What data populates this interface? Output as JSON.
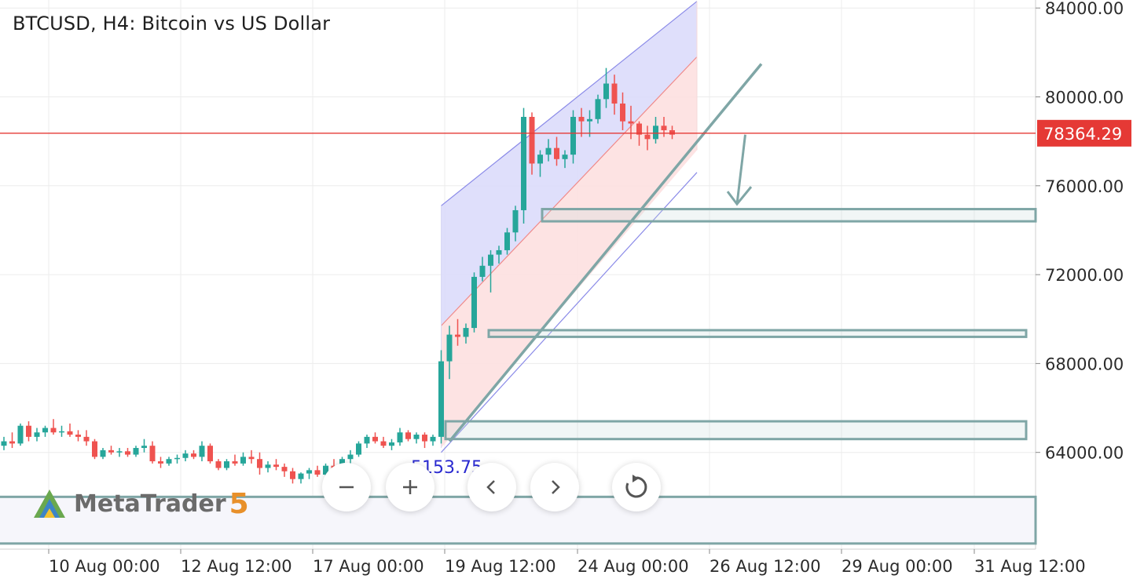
{
  "header": {
    "title": "BTCUSD, H4: Bitcoin vs US Dollar"
  },
  "logo": {
    "name": "MetaTrader",
    "version": "5"
  },
  "cursor_readout": "5153.75",
  "controls": [
    {
      "name": "zoom-out-button",
      "icon": "minus-icon"
    },
    {
      "name": "zoom-in-button",
      "icon": "plus-icon"
    },
    {
      "name": "scroll-left-button",
      "icon": "chevron-left-icon"
    },
    {
      "name": "scroll-right-button",
      "icon": "chevron-right-icon"
    },
    {
      "name": "reset-button",
      "icon": "refresh-icon"
    }
  ],
  "colors": {
    "up": "#26a69a",
    "down": "#ef5350",
    "price_line": "#e53935",
    "zone": "#7fa6a6",
    "channel_upper_fill": "#dcdcfb",
    "channel_lower_fill": "#fde0e0"
  },
  "chart_data": {
    "type": "candlestick",
    "symbol": "BTCUSD",
    "timeframe": "H4",
    "y_ticks": [
      "84000.00",
      "80000.00",
      "76000.00",
      "72000.00",
      "68000.00",
      "64000.00"
    ],
    "x_ticks": [
      "10 Aug 00:00",
      "12 Aug 12:00",
      "17 Aug 00:00",
      "19 Aug 12:00",
      "24 Aug 00:00",
      "26 Aug 12:00",
      "29 Aug 00:00",
      "31 Aug 12:00"
    ],
    "ylim": [
      59600,
      84200
    ],
    "current_price": 78364.29,
    "current_price_label": "78364.29",
    "support_zones": [
      {
        "low": 74400,
        "high": 74950
      },
      {
        "low": 69200,
        "high": 69500
      },
      {
        "low": 64600,
        "high": 65400
      },
      {
        "low": 59900,
        "high": 62000
      }
    ],
    "candles": [
      [
        64300,
        64700,
        64100,
        64500
      ],
      [
        64500,
        64900,
        64200,
        64400
      ],
      [
        64400,
        65300,
        64300,
        65200
      ],
      [
        65200,
        65400,
        64500,
        64700
      ],
      [
        64700,
        65100,
        64500,
        64900
      ],
      [
        64900,
        65200,
        64700,
        65100
      ],
      [
        65100,
        65500,
        64800,
        64900
      ],
      [
        64900,
        65200,
        64700,
        64950
      ],
      [
        64950,
        65300,
        64700,
        64800
      ],
      [
        64800,
        65000,
        64500,
        64700
      ],
      [
        64700,
        65000,
        64300,
        64500
      ],
      [
        64500,
        64600,
        63700,
        63800
      ],
      [
        63800,
        64200,
        63700,
        64100
      ],
      [
        64100,
        64300,
        63900,
        64000
      ],
      [
        64000,
        64200,
        63800,
        64050
      ],
      [
        64050,
        64200,
        63800,
        63900
      ],
      [
        63900,
        64300,
        63800,
        64200
      ],
      [
        64200,
        64600,
        64000,
        64300
      ],
      [
        64300,
        64500,
        63500,
        63600
      ],
      [
        63600,
        63800,
        63300,
        63500
      ],
      [
        63500,
        63800,
        63400,
        63700
      ],
      [
        63700,
        63900,
        63500,
        63750
      ],
      [
        63750,
        64100,
        63600,
        63950
      ],
      [
        63950,
        64100,
        63700,
        63800
      ],
      [
        63800,
        64500,
        63600,
        64300
      ],
      [
        64300,
        64400,
        63500,
        63600
      ],
      [
        63600,
        63700,
        63200,
        63300
      ],
      [
        63300,
        63700,
        63200,
        63600
      ],
      [
        63600,
        63900,
        63400,
        63500
      ],
      [
        63500,
        64000,
        63400,
        63800
      ],
      [
        63800,
        64100,
        63500,
        63700
      ],
      [
        63700,
        64000,
        63000,
        63300
      ],
      [
        63300,
        63600,
        63100,
        63450
      ],
      [
        63450,
        63700,
        63200,
        63350
      ],
      [
        63350,
        63500,
        62900,
        63150
      ],
      [
        63150,
        63300,
        62600,
        62800
      ],
      [
        62800,
        63100,
        62600,
        63050
      ],
      [
        63050,
        63300,
        62800,
        63200
      ],
      [
        63200,
        63400,
        62900,
        63000
      ],
      [
        63000,
        63500,
        62900,
        63400
      ],
      [
        63400,
        63700,
        63200,
        63300
      ],
      [
        63300,
        63800,
        63200,
        63700
      ],
      [
        63700,
        64100,
        63500,
        63900
      ],
      [
        63900,
        64500,
        63800,
        64400
      ],
      [
        64400,
        64800,
        64200,
        64700
      ],
      [
        64700,
        64900,
        64400,
        64500
      ],
      [
        64500,
        64700,
        64200,
        64300
      ],
      [
        64300,
        64600,
        64100,
        64450
      ],
      [
        64450,
        65100,
        64300,
        64900
      ],
      [
        64900,
        65000,
        64500,
        64600
      ],
      [
        64600,
        64900,
        64400,
        64800
      ],
      [
        64800,
        64900,
        64200,
        64500
      ],
      [
        64500,
        64800,
        64300,
        64700
      ],
      [
        64700,
        68600,
        64400,
        68100
      ],
      [
        68100,
        69700,
        67300,
        69300
      ],
      [
        69300,
        70000,
        68800,
        69200
      ],
      [
        69200,
        69800,
        68900,
        69600
      ],
      [
        69600,
        72100,
        69400,
        71900
      ],
      [
        71900,
        72800,
        71700,
        72400
      ],
      [
        72400,
        73100,
        71200,
        72900
      ],
      [
        72900,
        73300,
        72500,
        73100
      ],
      [
        73100,
        74100,
        72900,
        73900
      ],
      [
        73900,
        75100,
        73500,
        74900
      ],
      [
        74900,
        79500,
        74300,
        79100
      ],
      [
        79100,
        79300,
        76500,
        77000
      ],
      [
        77000,
        77600,
        76400,
        77400
      ],
      [
        77400,
        78100,
        77100,
        77700
      ],
      [
        77700,
        78200,
        76900,
        77200
      ],
      [
        77200,
        77600,
        76800,
        77400
      ],
      [
        77400,
        79400,
        77000,
        79100
      ],
      [
        79100,
        79500,
        78200,
        78900
      ],
      [
        78900,
        79400,
        78200,
        79000
      ],
      [
        79000,
        80100,
        78800,
        79900
      ],
      [
        79900,
        81300,
        79500,
        80600
      ],
      [
        80600,
        81000,
        79200,
        79700
      ],
      [
        79700,
        80200,
        78500,
        78900
      ],
      [
        78900,
        79600,
        78100,
        78800
      ],
      [
        78800,
        78900,
        77800,
        78300
      ],
      [
        78300,
        78700,
        77600,
        78100
      ],
      [
        78100,
        79100,
        77900,
        78700
      ],
      [
        78700,
        79100,
        78200,
        78500
      ],
      [
        78500,
        78700,
        78100,
        78300
      ]
    ],
    "channel": {
      "start_index": 53,
      "end_index": 84,
      "lines": [
        [
          75100,
          84300
        ],
        [
          69700,
          81800
        ],
        [
          64200,
          77600
        ],
        [
          64000,
          76600
        ]
      ]
    },
    "trendline": {
      "from": [
        54,
        64500
      ],
      "to": [
        88,
        80600
      ]
    },
    "projection_arrow": {
      "from": [
        87,
        78300
      ],
      "to": [
        86,
        75000
      ]
    }
  }
}
